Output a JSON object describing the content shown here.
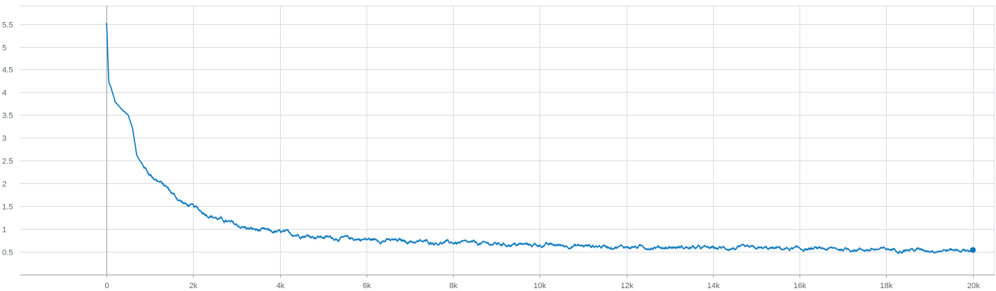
{
  "chart_data": {
    "type": "line",
    "title": "",
    "xlabel": "",
    "ylabel": "",
    "xlim": [
      -2000,
      20500
    ],
    "ylim": [
      0.0,
      5.9
    ],
    "grid": true,
    "legend": "none",
    "x_ticks": [
      0,
      2000,
      4000,
      6000,
      8000,
      10000,
      12000,
      14000,
      16000,
      18000,
      20000
    ],
    "x_tick_labels": [
      "0",
      "2k",
      "4k",
      "6k",
      "8k",
      "10k",
      "12k",
      "14k",
      "16k",
      "18k",
      "20k"
    ],
    "y_ticks": [
      0.5,
      1,
      1.5,
      2,
      2.5,
      3,
      3.5,
      4,
      4.5,
      5,
      5.5
    ],
    "y_tick_labels": [
      "0.5",
      "1",
      "1.5",
      "2",
      "2.5",
      "3",
      "3.5",
      "4",
      "4.5",
      "5",
      "5.5"
    ],
    "colors": {
      "line": "#0877bd",
      "raw": "#a9cfe8",
      "grid": "#dadce0",
      "axis": "#9aa0a6"
    },
    "series": [
      {
        "x": [
          0,
          50,
          100,
          200,
          300,
          400,
          500,
          600,
          700,
          800,
          1000,
          1200,
          1400,
          1600,
          1800,
          2000,
          2200,
          2400,
          2600,
          2800,
          3000,
          3300,
          3600,
          4000,
          4400,
          4800,
          5200,
          5600,
          6000,
          6500,
          7000,
          7500,
          8000,
          8500,
          9000,
          9500,
          10000,
          10500,
          11000,
          11500,
          12000,
          12500,
          13000,
          13500,
          14000,
          14500,
          15000,
          15500,
          16000,
          16500,
          17000,
          17500,
          18000,
          18500,
          19000,
          19500,
          20000
        ],
        "y": [
          5.52,
          4.2,
          4.1,
          3.78,
          3.66,
          3.58,
          3.5,
          3.2,
          2.62,
          2.45,
          2.2,
          2.05,
          1.9,
          1.7,
          1.55,
          1.48,
          1.38,
          1.3,
          1.22,
          1.15,
          1.08,
          1.0,
          0.96,
          0.92,
          0.88,
          0.84,
          0.81,
          0.79,
          0.77,
          0.75,
          0.73,
          0.71,
          0.7,
          0.68,
          0.67,
          0.66,
          0.65,
          0.64,
          0.63,
          0.62,
          0.61,
          0.6,
          0.6,
          0.59,
          0.58,
          0.58,
          0.57,
          0.57,
          0.56,
          0.56,
          0.56,
          0.55,
          0.55,
          0.55,
          0.54,
          0.54,
          0.54
        ]
      }
    ]
  }
}
